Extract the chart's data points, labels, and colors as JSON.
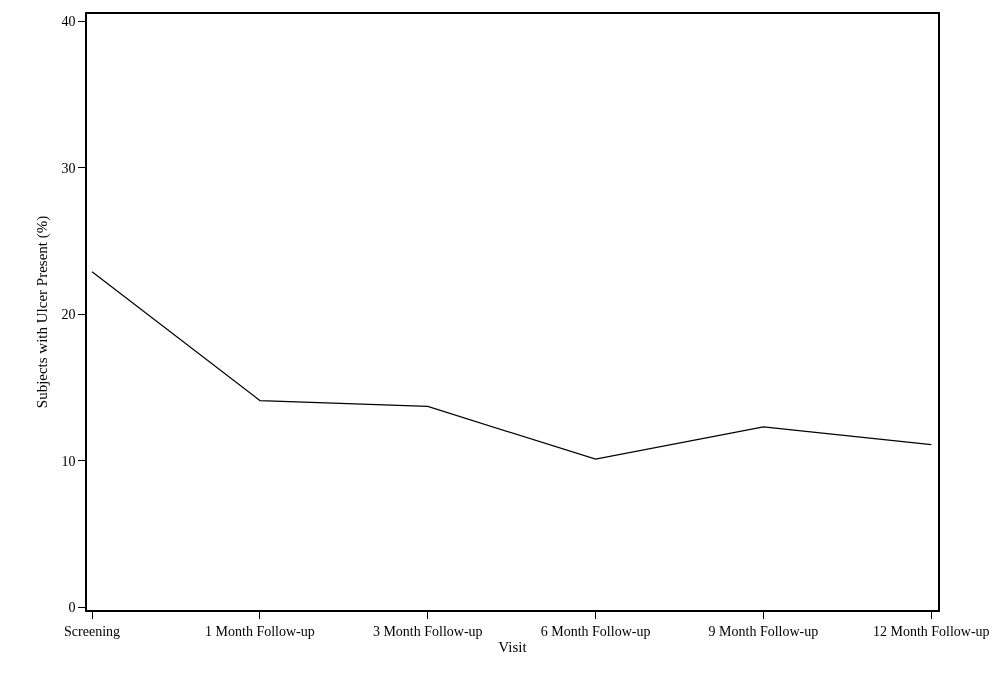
{
  "chart_data": {
    "type": "line",
    "xlabel": "Visit",
    "ylabel": "Subjects with Ulcer Present (%)",
    "categories": [
      "Screening",
      "1 Month Follow-up",
      "3 Month Follow-up",
      "6 Month Follow-up",
      "9 Month Follow-up",
      "12 Month Follow-up"
    ],
    "series": [
      {
        "color": "#000000",
        "values": [
          22.9,
          14.1,
          13.7,
          10.1,
          12.3,
          11.1
        ]
      }
    ],
    "ylim": [
      -0.2,
      40.5
    ],
    "yticks": [
      0,
      10,
      20,
      30,
      40
    ],
    "marker": "none",
    "line_style": "solid"
  }
}
